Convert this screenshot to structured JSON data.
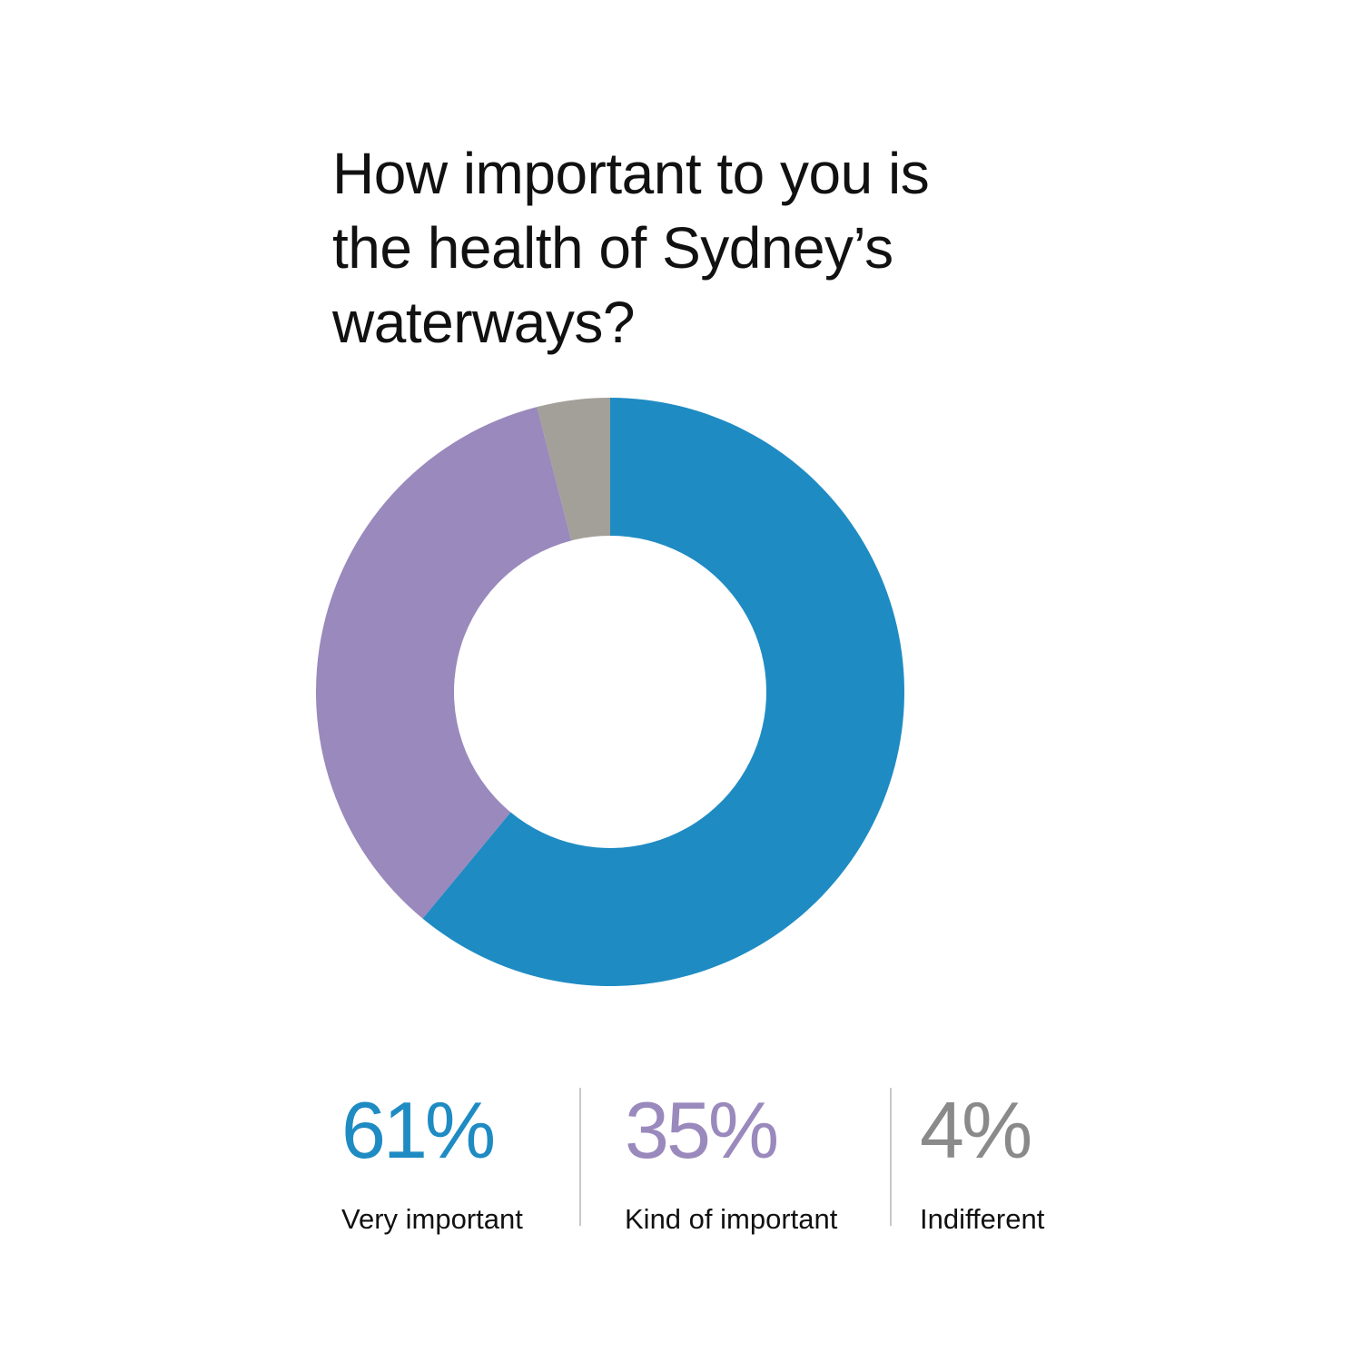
{
  "chart_data": {
    "type": "pie",
    "variant": "donut",
    "title": "How important to you is the health of Sydney’s waterways?",
    "categories": [
      "Very important",
      "Kind of important",
      "Indifferent"
    ],
    "values": [
      61,
      35,
      4
    ],
    "value_labels": [
      "61%",
      "35%",
      "4%"
    ],
    "colors": [
      "#1f8bc3",
      "#9a89bc",
      "#a39f99"
    ],
    "label_colors": [
      "#1f8bc3",
      "#9a89bc",
      "#8a8a8a"
    ],
    "legend_placement": "bottom"
  }
}
